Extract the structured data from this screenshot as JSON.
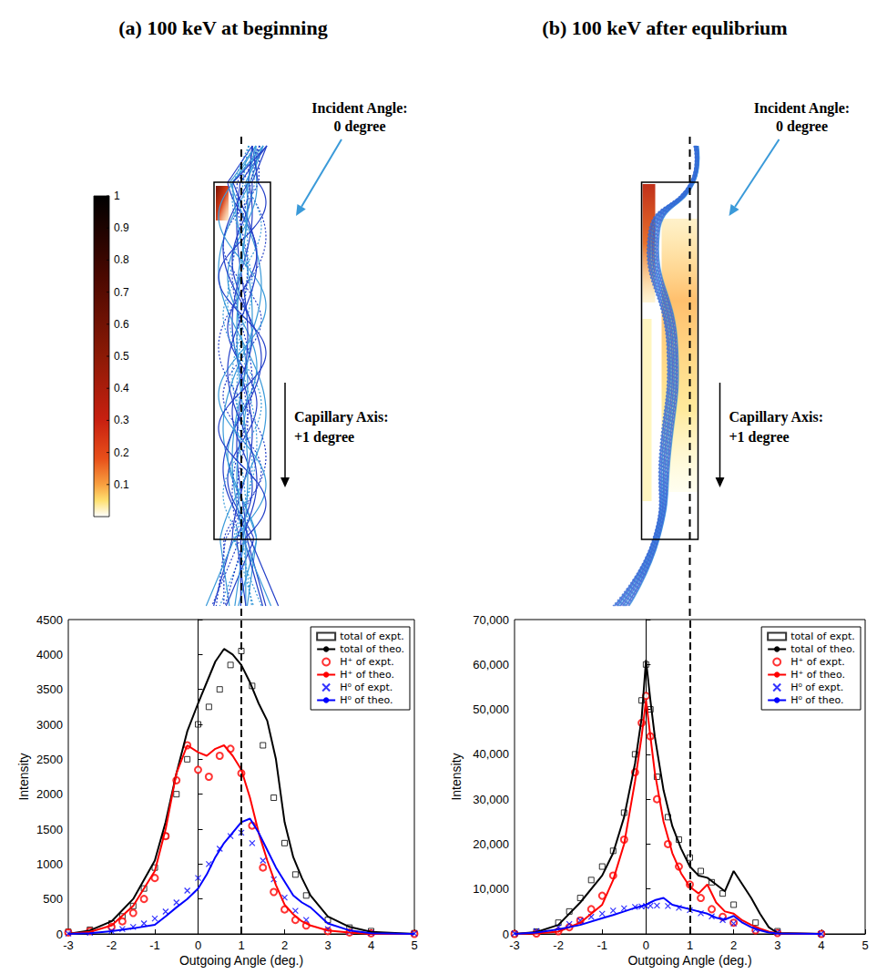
{
  "panels": [
    {
      "title": "(a) 100 keV at beginning",
      "incident_label": "Incident Angle: 0 degree",
      "axis_label": "Capillary Axis: +1 degree",
      "colorbar": {
        "range": [
          0,
          1
        ],
        "ticks": [
          0.1,
          0.2,
          0.3,
          0.4,
          0.5,
          0.6,
          0.7,
          0.8,
          0.9,
          1
        ]
      }
    },
    {
      "title": "(b) 100 keV after equlibrium",
      "incident_label": "Incident Angle: 0 degree",
      "axis_label": "Capillary Axis: +1 degree"
    }
  ],
  "chart_data": [
    {
      "type": "line",
      "xlabel": "Outgoing Angle (deg.)",
      "ylabel": "Intensity",
      "xlim": [
        -3,
        5
      ],
      "xticks": [
        -3,
        -2,
        -1,
        0,
        1,
        2,
        3,
        4,
        5
      ],
      "ylim": [
        0,
        4500
      ],
      "yticks": [
        0,
        500,
        1000,
        1500,
        2000,
        2500,
        3000,
        3500,
        4000,
        4500
      ],
      "grid": false,
      "legend": "upper right",
      "reference_line_x": 1,
      "series": [
        {
          "name": "total of expt.",
          "type": "scatter",
          "marker": "square",
          "color": "#000000",
          "x": [
            -3,
            -2.5,
            -2,
            -1.75,
            -1.5,
            -1.25,
            -1,
            -0.75,
            -0.5,
            -0.25,
            0,
            0.25,
            0.5,
            0.75,
            1,
            1.25,
            1.5,
            1.75,
            2,
            2.25,
            2.5,
            3,
            3.5,
            4,
            5
          ],
          "values": [
            30,
            60,
            150,
            250,
            400,
            650,
            950,
            1400,
            2000,
            2500,
            3000,
            3250,
            3500,
            3850,
            4050,
            3550,
            2700,
            1950,
            1300,
            850,
            550,
            200,
            90,
            40,
            10
          ]
        },
        {
          "name": "total of theo.",
          "type": "line",
          "line_style": "solid",
          "color": "#000000",
          "x": [
            -3,
            -2.5,
            -2,
            -1.5,
            -1,
            -0.75,
            -0.5,
            -0.25,
            0,
            0.2,
            0.4,
            0.6,
            0.8,
            1,
            1.2,
            1.4,
            1.6,
            1.8,
            2,
            2.2,
            2.4,
            2.6,
            3,
            3.5,
            4,
            5
          ],
          "values": [
            0,
            50,
            180,
            500,
            1050,
            1600,
            2300,
            2900,
            3300,
            3600,
            3900,
            4080,
            4000,
            3850,
            3600,
            3300,
            3050,
            2500,
            1600,
            1100,
            800,
            550,
            250,
            100,
            30,
            0
          ]
        },
        {
          "name": "H⁺ of expt.",
          "type": "scatter",
          "marker": "circle",
          "color": "#ff0000",
          "x": [
            -3,
            -2.5,
            -2,
            -1.75,
            -1.5,
            -1.25,
            -1,
            -0.75,
            -0.5,
            -0.25,
            0,
            0.25,
            0.5,
            0.75,
            1,
            1.25,
            1.5,
            1.75,
            2,
            2.25,
            2.5,
            3,
            3.5,
            4,
            5
          ],
          "values": [
            20,
            40,
            100,
            180,
            300,
            500,
            800,
            1400,
            2200,
            2700,
            2350,
            2250,
            2550,
            2650,
            2300,
            1550,
            950,
            600,
            350,
            200,
            120,
            40,
            20,
            10,
            0
          ]
        },
        {
          "name": "H⁺ of theo.",
          "type": "line",
          "line_style": "solid",
          "color": "#ff0000",
          "x": [
            -3,
            -2.5,
            -2,
            -1.5,
            -1,
            -0.75,
            -0.5,
            -0.25,
            0,
            0.2,
            0.4,
            0.6,
            0.8,
            1,
            1.2,
            1.4,
            1.6,
            1.8,
            2,
            2.2,
            2.4,
            2.6,
            3,
            3.5,
            4,
            5
          ],
          "values": [
            0,
            30,
            120,
            400,
            900,
            1500,
            2300,
            2700,
            2600,
            2550,
            2650,
            2700,
            2550,
            2350,
            1950,
            1450,
            1050,
            700,
            420,
            280,
            180,
            120,
            50,
            20,
            0,
            0
          ]
        },
        {
          "name": "H⁰ of expt.",
          "type": "scatter",
          "marker": "x",
          "color": "#0000ff",
          "x": [
            -3,
            -2.5,
            -2,
            -1.75,
            -1.5,
            -1.25,
            -1,
            -0.75,
            -0.5,
            -0.25,
            0,
            0.25,
            0.5,
            0.75,
            1,
            1.25,
            1.5,
            1.75,
            2,
            2.25,
            2.5,
            3,
            3.5,
            4,
            5
          ],
          "values": [
            5,
            15,
            40,
            70,
            100,
            150,
            220,
            320,
            450,
            620,
            800,
            1000,
            1220,
            1400,
            1450,
            1300,
            1050,
            780,
            520,
            330,
            200,
            70,
            30,
            15,
            5
          ]
        },
        {
          "name": "H⁰ of theo.",
          "type": "line",
          "line_style": "solid",
          "color": "#0000ff",
          "x": [
            -3,
            -2.5,
            -2,
            -1.5,
            -1,
            -0.75,
            -0.5,
            -0.25,
            0,
            0.2,
            0.4,
            0.6,
            0.8,
            1,
            1.2,
            1.4,
            1.6,
            1.8,
            2,
            2.2,
            2.4,
            2.6,
            3,
            3.5,
            4,
            5
          ],
          "values": [
            0,
            10,
            40,
            80,
            130,
            250,
            380,
            500,
            650,
            850,
            1100,
            1300,
            1450,
            1600,
            1650,
            1450,
            1200,
            950,
            750,
            550,
            450,
            380,
            150,
            50,
            10,
            0
          ]
        }
      ]
    },
    {
      "type": "line",
      "xlabel": "Outgoing Angle (deg.)",
      "ylabel": "Intensity",
      "xlim": [
        -3,
        5
      ],
      "xticks": [
        -3,
        -2,
        -1,
        0,
        1,
        2,
        3,
        4,
        5
      ],
      "ylim": [
        0,
        70000
      ],
      "yticks": [
        0,
        {
          "value": 10000,
          "label": "10,000"
        },
        {
          "value": 20000,
          "label": "20,000"
        },
        {
          "value": 30000,
          "label": "30,000"
        },
        {
          "value": 40000,
          "label": "40,000"
        },
        {
          "value": 50000,
          "label": "50,000"
        },
        {
          "value": 60000,
          "label": "60,000"
        },
        {
          "value": 70000,
          "label": "70,000"
        }
      ],
      "grid": false,
      "legend": "upper right",
      "reference_line_x": 1,
      "series": [
        {
          "name": "total of expt.",
          "type": "scatter",
          "marker": "square",
          "color": "#000000",
          "x": [
            -3,
            -2.5,
            -2,
            -1.75,
            -1.5,
            -1.25,
            -1,
            -0.75,
            -0.5,
            -0.25,
            -0.1,
            0,
            0.1,
            0.25,
            0.5,
            0.75,
            1,
            1.25,
            1.5,
            1.75,
            2,
            2.5,
            3,
            4
          ],
          "values": [
            0,
            500,
            2500,
            5000,
            8000,
            12000,
            15000,
            18500,
            27000,
            40000,
            52000,
            60000,
            50000,
            35000,
            26000,
            21000,
            17000,
            14000,
            11500,
            9000,
            6500,
            2500,
            600,
            0
          ]
        },
        {
          "name": "total of theo.",
          "type": "line",
          "line_style": "solid",
          "color": "#000000",
          "x": [
            -3,
            -2.5,
            -2,
            -1.5,
            -1,
            -0.75,
            -0.5,
            -0.25,
            -0.1,
            0,
            0.1,
            0.2,
            0.4,
            0.6,
            0.8,
            1,
            1.2,
            1.4,
            1.6,
            1.8,
            2,
            2.2,
            2.4,
            2.6,
            2.8,
            3,
            4
          ],
          "values": [
            0,
            400,
            2000,
            7000,
            13000,
            18000,
            26000,
            38000,
            48000,
            61000,
            52000,
            44000,
            32000,
            24000,
            19000,
            15000,
            13000,
            12500,
            11000,
            9500,
            14000,
            11000,
            8000,
            4500,
            1500,
            200,
            0
          ]
        },
        {
          "name": "H⁺ of expt.",
          "type": "scatter",
          "marker": "circle",
          "color": "#ff0000",
          "x": [
            -3,
            -2.5,
            -2,
            -1.75,
            -1.5,
            -1.25,
            -1,
            -0.75,
            -0.5,
            -0.25,
            -0.1,
            0,
            0.1,
            0.25,
            0.5,
            0.75,
            1,
            1.25,
            1.5,
            1.75,
            2,
            2.5,
            3,
            4
          ],
          "values": [
            0,
            100,
            600,
            1500,
            3000,
            5500,
            8500,
            13000,
            21000,
            36000,
            47000,
            53000,
            44000,
            30000,
            20000,
            15000,
            11000,
            8000,
            5500,
            3800,
            2500,
            800,
            200,
            0
          ]
        },
        {
          "name": "H⁺ of theo.",
          "type": "line",
          "line_style": "solid",
          "color": "#ff0000",
          "x": [
            -3,
            -2.5,
            -2,
            -1.5,
            -1,
            -0.75,
            -0.5,
            -0.25,
            -0.1,
            0,
            0.1,
            0.2,
            0.4,
            0.6,
            0.8,
            1,
            1.2,
            1.4,
            1.6,
            1.8,
            2,
            2.2,
            2.4,
            2.6,
            2.8,
            3,
            4
          ],
          "values": [
            0,
            100,
            500,
            2500,
            6500,
            12000,
            20000,
            34000,
            44000,
            52000,
            44000,
            36000,
            25000,
            18000,
            13500,
            10500,
            9000,
            11000,
            7000,
            5000,
            4500,
            3000,
            2000,
            1200,
            500,
            100,
            0
          ]
        },
        {
          "name": "H⁰ of expt.",
          "type": "scatter",
          "marker": "x",
          "color": "#0000ff",
          "x": [
            -3,
            -2.5,
            -2,
            -1.75,
            -1.5,
            -1.25,
            -1,
            -0.75,
            -0.5,
            -0.25,
            -0.1,
            0,
            0.1,
            0.25,
            0.5,
            0.75,
            1,
            1.25,
            1.5,
            1.75,
            2,
            2.5,
            3,
            4
          ],
          "values": [
            100,
            600,
            1500,
            2200,
            3000,
            3800,
            4500,
            5200,
            5700,
            6000,
            6100,
            6200,
            6250,
            6300,
            6200,
            5800,
            5300,
            4600,
            3900,
            3100,
            2300,
            1000,
            300,
            0
          ]
        },
        {
          "name": "H⁰ of theo.",
          "type": "line",
          "line_style": "solid",
          "color": "#0000ff",
          "x": [
            -3,
            -2.5,
            -2,
            -1.5,
            -1,
            -0.75,
            -0.5,
            -0.25,
            -0.1,
            0,
            0.1,
            0.2,
            0.4,
            0.6,
            0.8,
            1,
            1.2,
            1.4,
            1.6,
            1.8,
            2,
            2.2,
            2.4,
            2.6,
            2.8,
            3,
            4
          ],
          "values": [
            0,
            300,
            1000,
            2000,
            3500,
            4200,
            5000,
            5800,
            6200,
            6500,
            7000,
            7500,
            8000,
            6500,
            6000,
            5500,
            5000,
            4500,
            3600,
            3200,
            4000,
            2500,
            1500,
            800,
            300,
            100,
            0
          ]
        }
      ]
    }
  ]
}
